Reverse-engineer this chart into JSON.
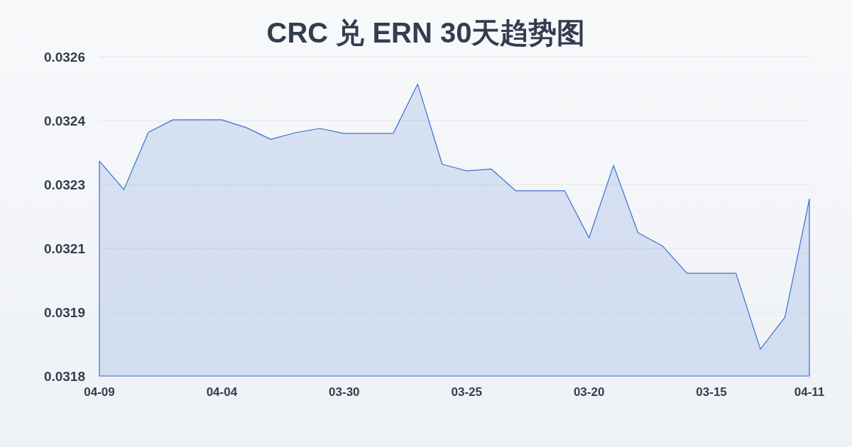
{
  "chart_data": {
    "type": "area",
    "title": "CRC 兑 ERN 30天趋势图",
    "categories": [
      "04-09",
      null,
      null,
      null,
      null,
      "04-04",
      null,
      null,
      null,
      null,
      "03-30",
      null,
      null,
      null,
      null,
      "03-25",
      null,
      null,
      null,
      null,
      "03-20",
      null,
      null,
      null,
      null,
      "03-15",
      null,
      null,
      null,
      "04-11"
    ],
    "series": [
      {
        "color": "#3a6fd0",
        "values": [
          0.032332,
          0.032259,
          0.032406,
          0.032438,
          0.032438,
          0.032438,
          0.032418,
          0.032388,
          0.032405,
          0.032416,
          0.032403,
          0.032403,
          0.032403,
          0.03253,
          0.032324,
          0.032307,
          0.032312,
          0.032256,
          0.032256,
          0.032256,
          0.032135,
          0.032321,
          0.032148,
          0.032114,
          0.032044,
          0.032044,
          0.032044,
          0.031849,
          0.031931,
          0.032235
        ]
      }
    ],
    "ylim": [
      0.03178,
      0.0326
    ],
    "yticks": [
      {
        "value": 0.03178,
        "label": "0.0318"
      },
      {
        "value": 0.031944,
        "label": "0.0319"
      },
      {
        "value": 0.032108,
        "label": "0.0321"
      },
      {
        "value": 0.032272,
        "label": "0.0323"
      },
      {
        "value": 0.032436,
        "label": "0.0324"
      },
      {
        "value": 0.0326,
        "label": "0.0326"
      }
    ],
    "grid": "y"
  }
}
